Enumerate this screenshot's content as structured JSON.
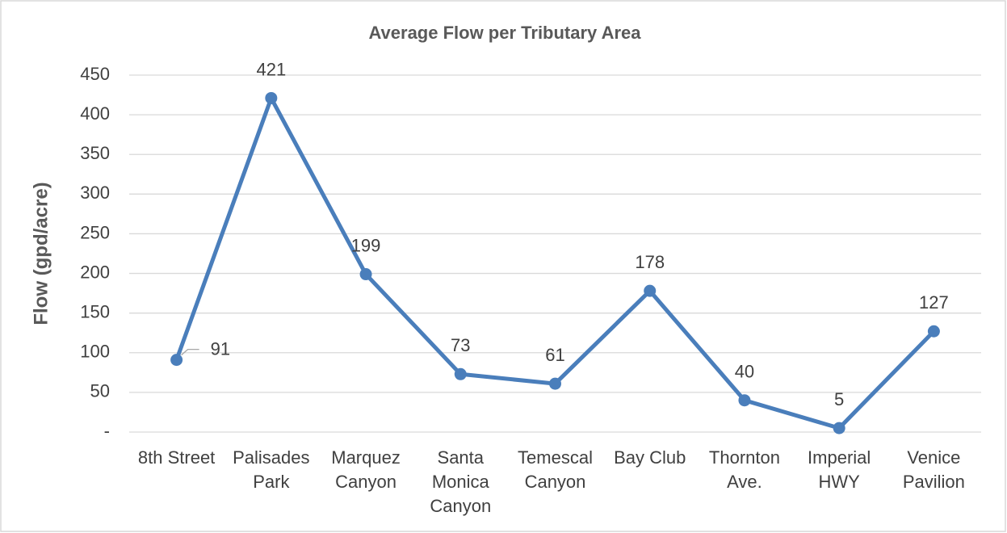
{
  "chart_data": {
    "type": "line",
    "title": "Average Flow per Tributary Area",
    "y_label": "Flow (gpd/acre)",
    "categories": [
      "8th Street",
      "Palisades Park",
      "Marquez Canyon",
      "Santa Monica Canyon",
      "Temescal Canyon",
      "Bay Club",
      "Thornton Ave.",
      "Imperial HWY",
      "Venice Pavilion"
    ],
    "series": [
      {
        "name": "Average Flow",
        "color": "#4a7ebb",
        "values": [
          91,
          421,
          199,
          73,
          61,
          178,
          40,
          5,
          127
        ]
      }
    ],
    "ylim": [
      0,
      450
    ],
    "yticks": [
      {
        "value": 0,
        "label": "-"
      },
      50,
      100,
      150,
      200,
      250,
      300,
      350,
      400,
      450
    ],
    "grid": true
  }
}
